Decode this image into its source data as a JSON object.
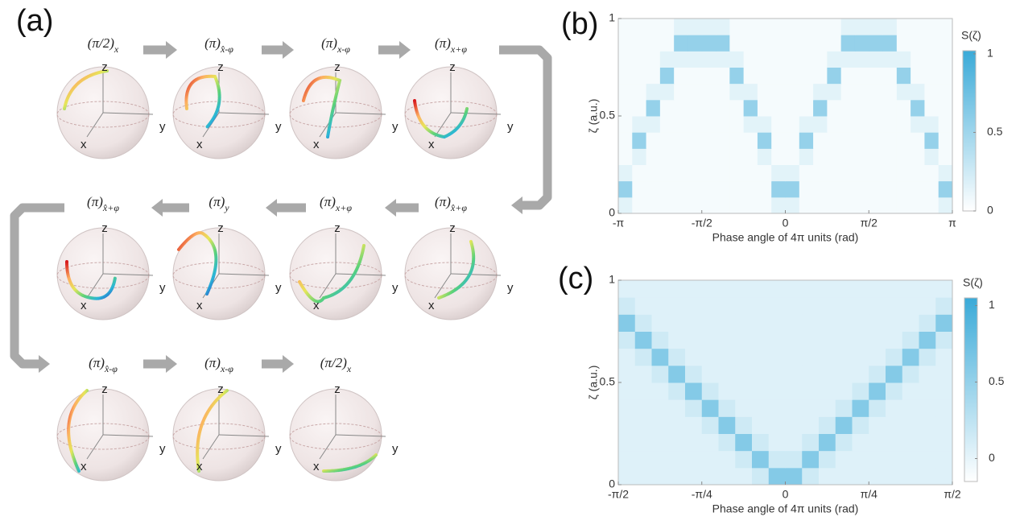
{
  "panel_a": {
    "panel_label": "(a)",
    "axes": {
      "x": "x",
      "y": "y",
      "z": "z"
    },
    "pulses": [
      {
        "main": "(π/2)",
        "sub": "x"
      },
      {
        "main": "(π)",
        "sub": "x̂-φ"
      },
      {
        "main": "(π)",
        "sub": "x-φ"
      },
      {
        "main": "(π)",
        "sub": "x+φ"
      },
      {
        "main": "(π)",
        "sub": "x̂+φ"
      },
      {
        "main": "(π)",
        "sub": "x+φ"
      },
      {
        "main": "(π)",
        "sub": "y"
      },
      {
        "main": "(π)",
        "sub": "x̂+φ"
      },
      {
        "main": "(π)",
        "sub": "x̂-φ"
      },
      {
        "main": "(π)",
        "sub": "x-φ"
      },
      {
        "main": "(π/2)",
        "sub": "x"
      }
    ]
  },
  "chart_data": [
    {
      "type": "heatmap",
      "panel_label": "(b)",
      "xlabel": "Phase angle of 4π units (rad)",
      "ylabel": "ζ (a.u.)",
      "colorbar_label": "S(ζ)",
      "xlim": [
        -3.1416,
        3.1416
      ],
      "ylim": [
        0,
        1
      ],
      "xticks": [
        {
          "value": -3.1416,
          "label": "-π"
        },
        {
          "value": -1.5708,
          "label": "-π/2"
        },
        0,
        {
          "value": 1.5708,
          "label": "π/2"
        },
        {
          "value": 3.1416,
          "label": "π"
        }
      ],
      "yticks": [
        0,
        0.5,
        1
      ],
      "zlim": [
        0,
        1.02
      ],
      "zticks": [
        0,
        0.5,
        1
      ],
      "color": "#3aaad8",
      "z": [
        [
          0.15,
          0.05,
          0.05,
          0.05,
          0.05,
          0.05,
          0.05,
          0.05,
          0.05,
          0.05,
          0.05,
          0.15,
          0.15,
          0.05,
          0.05,
          0.05,
          0.05,
          0.05,
          0.05,
          0.05,
          0.05,
          0.05,
          0.05,
          0.15
        ],
        [
          0.55,
          0.05,
          0.05,
          0.05,
          0.05,
          0.05,
          0.05,
          0.05,
          0.05,
          0.05,
          0.05,
          0.55,
          0.55,
          0.05,
          0.05,
          0.05,
          0.05,
          0.05,
          0.05,
          0.05,
          0.05,
          0.05,
          0.05,
          0.55
        ],
        [
          0.15,
          0.05,
          0.05,
          0.05,
          0.05,
          0.05,
          0.05,
          0.05,
          0.05,
          0.05,
          0.05,
          0.15,
          0.15,
          0.05,
          0.05,
          0.05,
          0.05,
          0.05,
          0.05,
          0.05,
          0.05,
          0.05,
          0.05,
          0.15
        ],
        [
          0.05,
          0.15,
          0.05,
          0.05,
          0.05,
          0.05,
          0.05,
          0.05,
          0.05,
          0.05,
          0.15,
          0.05,
          0.05,
          0.15,
          0.05,
          0.05,
          0.05,
          0.05,
          0.05,
          0.05,
          0.05,
          0.05,
          0.15,
          0.05
        ],
        [
          0.05,
          0.55,
          0.05,
          0.05,
          0.05,
          0.05,
          0.05,
          0.05,
          0.05,
          0.05,
          0.55,
          0.05,
          0.05,
          0.55,
          0.05,
          0.05,
          0.05,
          0.05,
          0.05,
          0.05,
          0.05,
          0.05,
          0.55,
          0.05
        ],
        [
          0.05,
          0.15,
          0.15,
          0.05,
          0.05,
          0.05,
          0.05,
          0.05,
          0.05,
          0.15,
          0.15,
          0.05,
          0.05,
          0.15,
          0.15,
          0.05,
          0.05,
          0.05,
          0.05,
          0.05,
          0.05,
          0.15,
          0.15,
          0.05
        ],
        [
          0.05,
          0.05,
          0.55,
          0.05,
          0.05,
          0.05,
          0.05,
          0.05,
          0.05,
          0.55,
          0.05,
          0.05,
          0.05,
          0.05,
          0.55,
          0.05,
          0.05,
          0.05,
          0.05,
          0.05,
          0.05,
          0.55,
          0.05,
          0.05
        ],
        [
          0.05,
          0.05,
          0.15,
          0.15,
          0.05,
          0.05,
          0.05,
          0.05,
          0.15,
          0.15,
          0.05,
          0.05,
          0.05,
          0.05,
          0.15,
          0.15,
          0.05,
          0.05,
          0.05,
          0.05,
          0.15,
          0.15,
          0.05,
          0.05
        ],
        [
          0.05,
          0.05,
          0.05,
          0.55,
          0.05,
          0.05,
          0.05,
          0.05,
          0.55,
          0.05,
          0.05,
          0.05,
          0.05,
          0.05,
          0.05,
          0.55,
          0.05,
          0.05,
          0.05,
          0.05,
          0.55,
          0.05,
          0.05,
          0.05
        ],
        [
          0.05,
          0.05,
          0.05,
          0.15,
          0.15,
          0.15,
          0.15,
          0.15,
          0.15,
          0.05,
          0.05,
          0.05,
          0.05,
          0.05,
          0.05,
          0.15,
          0.15,
          0.15,
          0.15,
          0.15,
          0.15,
          0.05,
          0.05,
          0.05
        ],
        [
          0.05,
          0.05,
          0.05,
          0.05,
          0.55,
          0.55,
          0.55,
          0.55,
          0.05,
          0.05,
          0.05,
          0.05,
          0.05,
          0.05,
          0.05,
          0.05,
          0.55,
          0.55,
          0.55,
          0.55,
          0.05,
          0.05,
          0.05,
          0.05
        ],
        [
          0.05,
          0.05,
          0.05,
          0.05,
          0.15,
          0.15,
          0.15,
          0.15,
          0.05,
          0.05,
          0.05,
          0.05,
          0.05,
          0.05,
          0.05,
          0.05,
          0.15,
          0.15,
          0.15,
          0.15,
          0.05,
          0.05,
          0.05,
          0.05
        ]
      ]
    },
    {
      "type": "heatmap",
      "panel_label": "(c)",
      "xlabel": "Phase angle of 4π units (rad)",
      "ylabel": "ζ (a.u.)",
      "colorbar_label": "S(ζ)",
      "xlim": [
        -1.5708,
        1.5708
      ],
      "ylim": [
        0,
        1
      ],
      "xticks": [
        {
          "value": -1.5708,
          "label": "-π/2"
        },
        {
          "value": -0.7854,
          "label": "-π/4"
        },
        0,
        {
          "value": 0.7854,
          "label": "π/4"
        },
        {
          "value": 1.5708,
          "label": "π/2"
        }
      ],
      "yticks": [
        0,
        0.5,
        1
      ],
      "zlim": [
        -0.15,
        1.05
      ],
      "zticks": [
        0,
        0.5,
        1
      ],
      "color": "#3aaad8",
      "z": [
        [
          0.05,
          0.05,
          0.05,
          0.05,
          0.05,
          0.05,
          0.05,
          0.05,
          0.15,
          0.6,
          0.6,
          0.15,
          0.05,
          0.05,
          0.05,
          0.05,
          0.05,
          0.05,
          0.05,
          0.05
        ],
        [
          0.05,
          0.05,
          0.05,
          0.05,
          0.05,
          0.05,
          0.05,
          0.15,
          0.6,
          0.15,
          0.15,
          0.6,
          0.15,
          0.05,
          0.05,
          0.05,
          0.05,
          0.05,
          0.05,
          0.05
        ],
        [
          0.05,
          0.05,
          0.05,
          0.05,
          0.05,
          0.05,
          0.15,
          0.6,
          0.15,
          0.05,
          0.05,
          0.15,
          0.6,
          0.15,
          0.05,
          0.05,
          0.05,
          0.05,
          0.05,
          0.05
        ],
        [
          0.05,
          0.05,
          0.05,
          0.05,
          0.05,
          0.15,
          0.6,
          0.15,
          0.05,
          0.05,
          0.05,
          0.05,
          0.15,
          0.6,
          0.15,
          0.05,
          0.05,
          0.05,
          0.05,
          0.05
        ],
        [
          0.05,
          0.05,
          0.05,
          0.05,
          0.15,
          0.6,
          0.15,
          0.05,
          0.05,
          0.05,
          0.05,
          0.05,
          0.05,
          0.15,
          0.6,
          0.15,
          0.05,
          0.05,
          0.05,
          0.05
        ],
        [
          0.05,
          0.05,
          0.05,
          0.15,
          0.6,
          0.15,
          0.05,
          0.05,
          0.05,
          0.05,
          0.05,
          0.05,
          0.05,
          0.05,
          0.15,
          0.6,
          0.15,
          0.05,
          0.05,
          0.05
        ],
        [
          0.05,
          0.05,
          0.15,
          0.6,
          0.15,
          0.05,
          0.05,
          0.05,
          0.05,
          0.05,
          0.05,
          0.05,
          0.05,
          0.05,
          0.05,
          0.15,
          0.6,
          0.15,
          0.05,
          0.05
        ],
        [
          0.05,
          0.15,
          0.6,
          0.15,
          0.05,
          0.05,
          0.05,
          0.05,
          0.05,
          0.05,
          0.05,
          0.05,
          0.05,
          0.05,
          0.05,
          0.05,
          0.15,
          0.6,
          0.15,
          0.05
        ],
        [
          0.15,
          0.6,
          0.15,
          0.05,
          0.05,
          0.05,
          0.05,
          0.05,
          0.05,
          0.05,
          0.05,
          0.05,
          0.05,
          0.05,
          0.05,
          0.05,
          0.05,
          0.15,
          0.6,
          0.15
        ],
        [
          0.6,
          0.15,
          0.05,
          0.05,
          0.05,
          0.05,
          0.05,
          0.05,
          0.05,
          0.05,
          0.05,
          0.05,
          0.05,
          0.05,
          0.05,
          0.05,
          0.05,
          0.05,
          0.15,
          0.6
        ],
        [
          0.15,
          0.05,
          0.05,
          0.05,
          0.05,
          0.05,
          0.05,
          0.05,
          0.05,
          0.05,
          0.05,
          0.05,
          0.05,
          0.05,
          0.05,
          0.05,
          0.05,
          0.05,
          0.05,
          0.15
        ],
        [
          0.05,
          0.05,
          0.05,
          0.05,
          0.05,
          0.05,
          0.05,
          0.05,
          0.05,
          0.05,
          0.05,
          0.05,
          0.05,
          0.05,
          0.05,
          0.05,
          0.05,
          0.05,
          0.05,
          0.05
        ]
      ]
    }
  ]
}
